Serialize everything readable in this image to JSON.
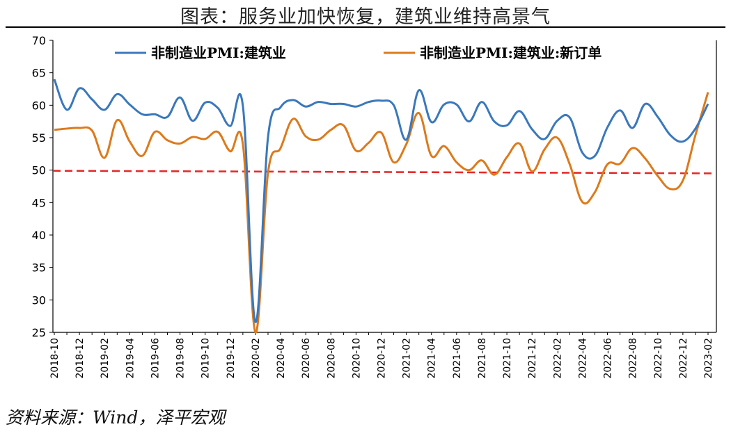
{
  "figure": {
    "title": "图表：服务业加快恢复，建筑业维持高景气",
    "source": "资料来源：Wind，泽平宏观"
  },
  "chart_data": {
    "type": "line",
    "x": [
      "2018-10",
      "2018-11",
      "2018-12",
      "2019-01",
      "2019-02",
      "2019-03",
      "2019-04",
      "2019-05",
      "2019-06",
      "2019-07",
      "2019-08",
      "2019-09",
      "2019-10",
      "2019-11",
      "2019-12",
      "2020-01",
      "2020-02",
      "2020-03",
      "2020-04",
      "2020-05",
      "2020-06",
      "2020-07",
      "2020-08",
      "2020-09",
      "2020-10",
      "2020-11",
      "2020-12",
      "2021-01",
      "2021-02",
      "2021-03",
      "2021-04",
      "2021-05",
      "2021-06",
      "2021-07",
      "2021-08",
      "2021-09",
      "2021-10",
      "2021-11",
      "2021-12",
      "2022-01",
      "2022-02",
      "2022-03",
      "2022-04",
      "2022-05",
      "2022-06",
      "2022-07",
      "2022-08",
      "2022-09",
      "2022-10",
      "2022-11",
      "2022-12",
      "2023-01",
      "2023-02"
    ],
    "xticks": [
      "2018-10",
      "2018-12",
      "2019-02",
      "2019-04",
      "2019-06",
      "2019-08",
      "2019-10",
      "2019-12",
      "2020-02",
      "2020-04",
      "2020-06",
      "2020-08",
      "2020-10",
      "2020-12",
      "2021-02",
      "2021-04",
      "2021-06",
      "2021-08",
      "2021-10",
      "2021-12",
      "2022-02",
      "2022-04",
      "2022-06",
      "2022-08",
      "2022-10",
      "2022-12",
      "2023-02"
    ],
    "ylim": [
      25,
      70
    ],
    "yticks": [
      25,
      30,
      35,
      40,
      45,
      50,
      55,
      60,
      65,
      70
    ],
    "series": [
      {
        "name": "非制造业PMI:建筑业",
        "color": "#3a78bb",
        "values": [
          64.0,
          59.3,
          62.6,
          60.9,
          59.3,
          61.7,
          60.1,
          58.6,
          58.6,
          58.2,
          61.2,
          57.6,
          60.4,
          59.6,
          56.8,
          59.9,
          26.6,
          55.1,
          59.7,
          60.8,
          59.8,
          60.5,
          60.2,
          60.2,
          59.8,
          60.5,
          60.7,
          60.0,
          54.7,
          62.3,
          57.4,
          60.1,
          60.1,
          57.5,
          60.5,
          57.5,
          56.9,
          59.1,
          56.3,
          54.8,
          57.6,
          58.1,
          52.7,
          52.2,
          56.6,
          59.2,
          56.5,
          60.2,
          58.2,
          55.4,
          54.4,
          56.4,
          60.2
        ]
      },
      {
        "name": "非制造业PMI:建筑业:新订单",
        "color": "#dc7a1c",
        "values": [
          56.2,
          56.4,
          56.5,
          56.1,
          51.9,
          57.7,
          54.4,
          52.2,
          55.9,
          54.6,
          54.1,
          55.1,
          54.8,
          55.9,
          52.9,
          54.0,
          25.0,
          49.6,
          53.4,
          57.9,
          55.2,
          54.7,
          56.2,
          56.9,
          53.0,
          54.2,
          55.8,
          51.2,
          54.0,
          58.8,
          52.2,
          53.7,
          51.2,
          50.0,
          51.5,
          49.3,
          52.0,
          54.1,
          49.8,
          53.2,
          55.0,
          50.9,
          45.1,
          46.6,
          50.9,
          51.0,
          53.4,
          51.8,
          49.1,
          47.1,
          48.4,
          55.4,
          62.0
        ]
      }
    ],
    "reference_line": {
      "values": [
        49.9,
        49.5
      ],
      "color": "#e52a2a",
      "style": "dashed"
    },
    "legend": "top",
    "grid": false
  }
}
